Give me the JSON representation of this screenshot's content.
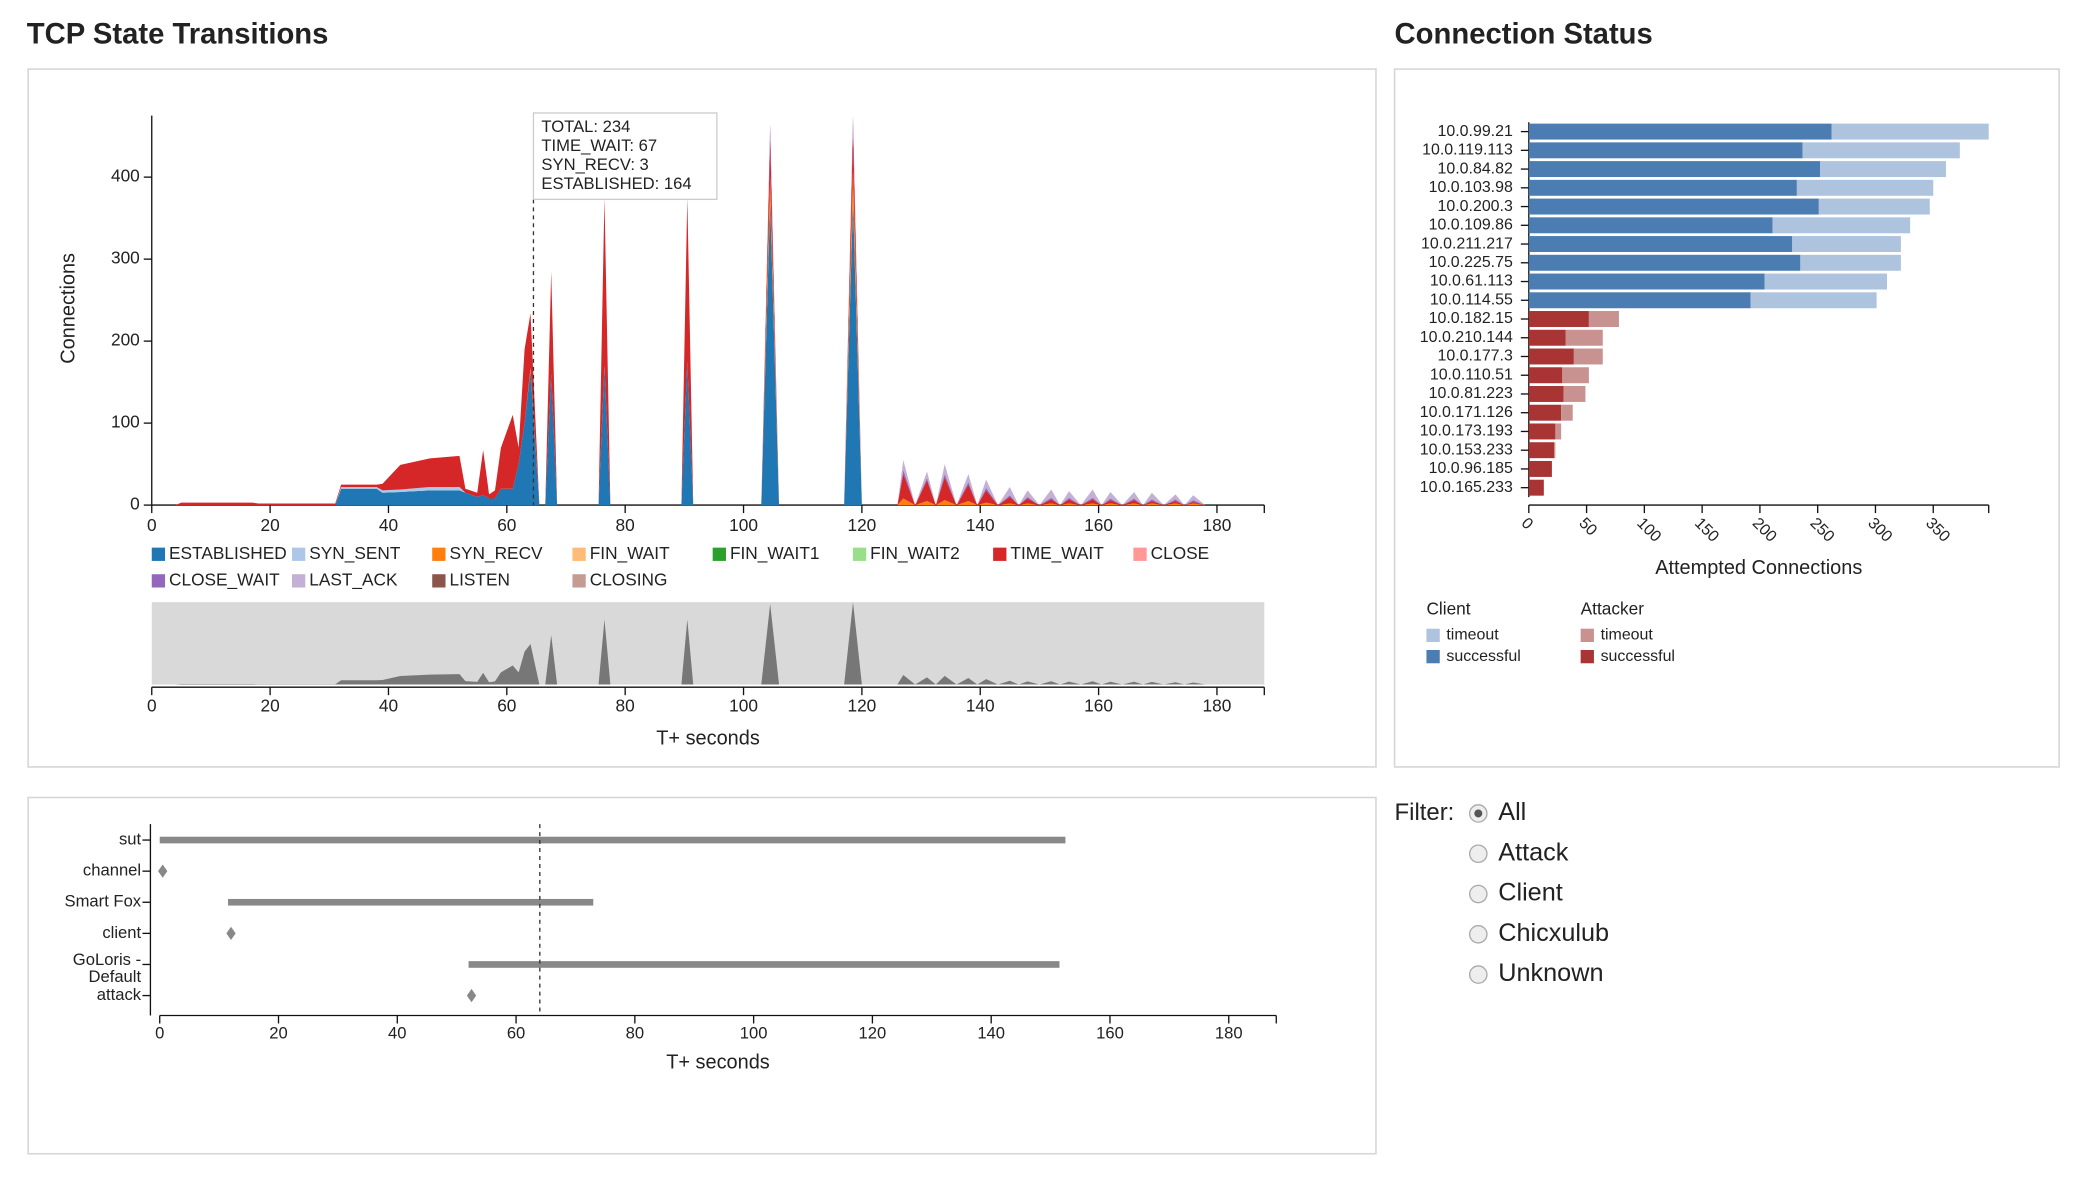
{
  "chart_data": [
    {
      "type": "area",
      "title": "TCP State Transitions",
      "ylabel": "Connections",
      "xlabel": "T+ seconds",
      "x": [
        0,
        4,
        5,
        17,
        18,
        31,
        32,
        38,
        39,
        42,
        47,
        52,
        53,
        55,
        56,
        57,
        58,
        59,
        61,
        62,
        63,
        64,
        65.5,
        66.5,
        67.5,
        68.5,
        75.5,
        76.5,
        77.5,
        89.5,
        90.5,
        91.5,
        103,
        104.5,
        106,
        117,
        118.5,
        120,
        126,
        127,
        129,
        131,
        132.5,
        134,
        136,
        138,
        139.5,
        141,
        143,
        145,
        146.5,
        148,
        150,
        152,
        153.5,
        155,
        157,
        159,
        160.5,
        162,
        164,
        166,
        167.5,
        169,
        171,
        173,
        174.5,
        176,
        178
      ],
      "xlim": [
        0,
        188
      ],
      "ylim": [
        0,
        475
      ],
      "xticks": [
        0,
        20,
        40,
        60,
        80,
        100,
        120,
        140,
        160,
        180
      ],
      "yticks": [
        0,
        100,
        200,
        300,
        400
      ],
      "series": [
        {
          "name": "ESTABLISHED",
          "color": "#1f77b4",
          "values": [
            0,
            0,
            0,
            0,
            0,
            0,
            20,
            20,
            15,
            16,
            18,
            18,
            15,
            10,
            12,
            8,
            8,
            20,
            20,
            50,
            100,
            164,
            0,
            0,
            160,
            0,
            0,
            170,
            0,
            0,
            175,
            0,
            0,
            370,
            0,
            0,
            370,
            0,
            0,
            0,
            0,
            0,
            0,
            0,
            0,
            0,
            0,
            0,
            0,
            0,
            0,
            0,
            0,
            0,
            0,
            0,
            0,
            0,
            0,
            0,
            0,
            0,
            0,
            0,
            0,
            0,
            0,
            0,
            0
          ]
        },
        {
          "name": "SYN_SENT",
          "color": "#aec7e8",
          "values": [
            0,
            0,
            0,
            0,
            0,
            0,
            2,
            2,
            3,
            3,
            4,
            4,
            0,
            0,
            0,
            0,
            0,
            0,
            0,
            0,
            0,
            0,
            0,
            0,
            0,
            0,
            0,
            0,
            0,
            0,
            0,
            0,
            0,
            0,
            0,
            0,
            0,
            0,
            0,
            0,
            0,
            0,
            0,
            0,
            0,
            0,
            0,
            0,
            0,
            0,
            0,
            0,
            0,
            0,
            0,
            0,
            0,
            0,
            0,
            0,
            0,
            0,
            0,
            0,
            0,
            0,
            0,
            0,
            0
          ]
        },
        {
          "name": "SYN_RECV",
          "color": "#ff7f0e",
          "values": [
            0,
            0,
            0,
            0,
            0,
            0,
            0,
            0,
            0,
            0,
            0,
            0,
            0,
            0,
            0,
            0,
            0,
            0,
            0,
            0,
            0,
            3,
            0,
            0,
            0,
            0,
            0,
            0,
            0,
            0,
            0,
            0,
            0,
            30,
            0,
            0,
            40,
            0,
            0,
            8,
            0,
            5,
            0,
            6,
            0,
            5,
            0,
            3,
            0,
            2,
            0,
            2,
            0,
            2,
            0,
            2,
            0,
            2,
            0,
            2,
            0,
            2,
            0,
            2,
            0,
            2,
            0,
            2,
            0
          ]
        },
        {
          "name": "FIN_WAIT",
          "color": "#ffbb78",
          "values": [
            0,
            0,
            0,
            0,
            0,
            0,
            0,
            0,
            0,
            0,
            0,
            0,
            0,
            0,
            0,
            0,
            0,
            0,
            0,
            0,
            0,
            0,
            0,
            0,
            0,
            0,
            0,
            0,
            0,
            0,
            0,
            0,
            0,
            0,
            0,
            0,
            0,
            0,
            0,
            0,
            0,
            0,
            0,
            0,
            0,
            0,
            0,
            0,
            0,
            0,
            0,
            0,
            0,
            0,
            0,
            0,
            0,
            0,
            0,
            0,
            0,
            0,
            0,
            0,
            0,
            0,
            0,
            0,
            0
          ]
        },
        {
          "name": "FIN_WAIT1",
          "color": "#2ca02c",
          "values": [
            0,
            0,
            0,
            0,
            0,
            0,
            0,
            0,
            0,
            0,
            0,
            0,
            0,
            0,
            0,
            0,
            0,
            0,
            0,
            0,
            0,
            0,
            0,
            0,
            0,
            0,
            0,
            0,
            0,
            0,
            0,
            0,
            0,
            0,
            0,
            0,
            0,
            0,
            0,
            0,
            0,
            0,
            0,
            0,
            0,
            0,
            0,
            0,
            0,
            0,
            0,
            0,
            0,
            0,
            0,
            0,
            0,
            0,
            0,
            0,
            0,
            0,
            0,
            0,
            0,
            0,
            0,
            0,
            0
          ]
        },
        {
          "name": "FIN_WAIT2",
          "color": "#98df8a",
          "values": [
            0,
            0,
            0,
            0,
            0,
            0,
            0,
            0,
            0,
            0,
            0,
            0,
            0,
            0,
            0,
            0,
            0,
            0,
            0,
            0,
            0,
            0,
            0,
            0,
            0,
            0,
            0,
            0,
            0,
            0,
            0,
            0,
            0,
            0,
            0,
            0,
            0,
            0,
            0,
            0,
            0,
            0,
            0,
            0,
            0,
            0,
            0,
            0,
            0,
            0,
            0,
            0,
            0,
            0,
            0,
            0,
            0,
            0,
            0,
            0,
            0,
            0,
            0,
            0,
            0,
            0,
            0,
            0,
            0
          ]
        },
        {
          "name": "TIME_WAIT",
          "color": "#d62728",
          "values": [
            0,
            0,
            3,
            3,
            2,
            2,
            3,
            3,
            8,
            30,
            35,
            38,
            5,
            5,
            55,
            5,
            10,
            50,
            90,
            20,
            90,
            67,
            0,
            0,
            125,
            0,
            0,
            205,
            0,
            0,
            200,
            0,
            0,
            50,
            0,
            0,
            50,
            0,
            0,
            30,
            0,
            25,
            0,
            28,
            0,
            20,
            0,
            15,
            0,
            8,
            0,
            6,
            0,
            5,
            0,
            5,
            0,
            5,
            0,
            4,
            0,
            4,
            0,
            3,
            0,
            3,
            0,
            2,
            0
          ]
        },
        {
          "name": "CLOSE",
          "color": "#ff9896",
          "values": [
            0,
            0,
            0,
            0,
            0,
            0,
            0,
            0,
            0,
            0,
            0,
            0,
            0,
            0,
            0,
            0,
            0,
            0,
            0,
            0,
            0,
            0,
            0,
            0,
            0,
            0,
            0,
            0,
            0,
            0,
            0,
            0,
            0,
            0,
            0,
            0,
            0,
            0,
            0,
            0,
            0,
            0,
            0,
            0,
            0,
            0,
            0,
            0,
            0,
            0,
            0,
            0,
            0,
            0,
            0,
            0,
            0,
            0,
            0,
            0,
            0,
            0,
            0,
            0,
            0,
            0,
            0,
            0,
            0
          ]
        },
        {
          "name": "CLOSE_WAIT",
          "color": "#9467bd",
          "values": [
            0,
            0,
            0,
            0,
            0,
            0,
            0,
            0,
            0,
            0,
            0,
            0,
            0,
            0,
            0,
            0,
            0,
            0,
            0,
            0,
            0,
            0,
            0,
            0,
            0,
            0,
            0,
            0,
            0,
            0,
            0,
            0,
            0,
            15,
            0,
            0,
            15,
            0,
            0,
            5,
            0,
            3,
            0,
            4,
            0,
            3,
            0,
            3,
            0,
            2,
            0,
            2,
            0,
            2,
            0,
            2,
            0,
            2,
            0,
            2,
            0,
            2,
            0,
            2,
            0,
            2,
            0,
            2,
            0
          ]
        },
        {
          "name": "LAST_ACK",
          "color": "#c5b0d5",
          "values": [
            0,
            0,
            0,
            0,
            0,
            0,
            0,
            0,
            0,
            0,
            0,
            0,
            0,
            0,
            0,
            0,
            0,
            0,
            0,
            0,
            0,
            0,
            0,
            0,
            0,
            0,
            0,
            0,
            0,
            0,
            0,
            0,
            0,
            0,
            0,
            0,
            0,
            0,
            0,
            12,
            0,
            8,
            0,
            12,
            0,
            10,
            0,
            10,
            0,
            10,
            0,
            8,
            0,
            10,
            0,
            8,
            0,
            10,
            0,
            8,
            0,
            8,
            0,
            8,
            0,
            6,
            0,
            6,
            0
          ]
        },
        {
          "name": "LISTEN",
          "color": "#8c564b",
          "values": [
            0,
            0,
            0,
            0,
            0,
            0,
            0,
            0,
            0,
            0,
            0,
            0,
            0,
            0,
            0,
            0,
            0,
            0,
            0,
            0,
            0,
            0,
            0,
            0,
            0,
            0,
            0,
            0,
            0,
            0,
            0,
            0,
            0,
            0,
            0,
            0,
            0,
            0,
            0,
            0,
            0,
            0,
            0,
            0,
            0,
            0,
            0,
            0,
            0,
            0,
            0,
            0,
            0,
            0,
            0,
            0,
            0,
            0,
            0,
            0,
            0,
            0,
            0,
            0,
            0,
            0,
            0,
            0,
            0
          ]
        },
        {
          "name": "CLOSING",
          "color": "#c49c94",
          "values": [
            0,
            0,
            0,
            0,
            0,
            0,
            0,
            0,
            0,
            0,
            0,
            0,
            0,
            0,
            0,
            0,
            0,
            0,
            0,
            0,
            0,
            0,
            0,
            0,
            0,
            0,
            0,
            0,
            0,
            0,
            0,
            0,
            0,
            0,
            0,
            0,
            0,
            0,
            0,
            0,
            0,
            0,
            0,
            0,
            0,
            0,
            0,
            0,
            0,
            0,
            0,
            0,
            0,
            0,
            0,
            0,
            0,
            0,
            0,
            0,
            0,
            0,
            0,
            0,
            0,
            0,
            0,
            0,
            0
          ]
        }
      ],
      "cursor_x": 64.5,
      "tooltip": [
        {
          "text": "TOTAL: 234",
          "color": "#222222"
        },
        {
          "text": "TIME_WAIT: 67",
          "color": "#d62728"
        },
        {
          "text": "SYN_RECV: 3",
          "color": "#ff7f0e"
        },
        {
          "text": "ESTABLISHED: 164",
          "color": "#1f77b4"
        }
      ],
      "context": true
    },
    {
      "type": "timeline",
      "xlabel": "T+ seconds",
      "categories": [
        "sut",
        "channel",
        "Smart Fox",
        "client",
        [
          "GoLoris -",
          "Default"
        ],
        "attack"
      ],
      "starts": [
        0,
        0.5,
        11.5,
        12,
        52,
        52.5
      ],
      "ends": [
        152.5,
        null,
        73,
        null,
        151.5,
        null
      ],
      "color": "#888888",
      "xlim": [
        0,
        188
      ],
      "xticks": [
        0,
        20,
        40,
        60,
        80,
        100,
        120,
        140,
        160,
        180
      ],
      "cursor_x": 64
    },
    {
      "type": "hbar",
      "title": "Connection Status",
      "xlabel": "Attempted Connections",
      "categories": [
        "10.0.99.21",
        "10.0.119.113",
        "10.0.84.82",
        "10.0.103.98",
        "10.0.200.3",
        "10.0.109.86",
        "10.0.211.217",
        "10.0.225.75",
        "10.0.61.113",
        "10.0.114.55",
        "10.0.182.15",
        "10.0.210.144",
        "10.0.177.3",
        "10.0.110.51",
        "10.0.81.223",
        "10.0.171.126",
        "10.0.173.193",
        "10.0.153.233",
        "10.0.96.185",
        "10.0.165.233"
      ],
      "xlim": [
        0,
        398
      ],
      "xticks": [
        0,
        50,
        100,
        150,
        200,
        250,
        300,
        350
      ],
      "groups": [
        {
          "name": "Client",
          "series": [
            {
              "name": "timeout",
              "color": "#aec3de",
              "values": [
                136,
                136,
                109,
                118,
                96,
                119,
                94,
                87,
                106,
                109,
                null,
                null,
                null,
                null,
                null,
                null,
                null,
                null,
                null,
                null
              ]
            },
            {
              "name": "successful",
              "color": "#4b7db3",
              "values": [
                262,
                237,
                252,
                232,
                251,
                211,
                228,
                235,
                204,
                192,
                null,
                null,
                null,
                null,
                null,
                null,
                null,
                null,
                null,
                null
              ]
            }
          ]
        },
        {
          "name": "Attacker",
          "series": [
            {
              "name": "timeout",
              "color": "#c79290",
              "values": [
                null,
                null,
                null,
                null,
                null,
                null,
                null,
                null,
                null,
                null,
                26,
                32,
                25,
                23,
                19,
                10,
                5,
                1,
                0,
                0
              ]
            },
            {
              "name": "successful",
              "color": "#a83434",
              "values": [
                null,
                null,
                null,
                null,
                null,
                null,
                null,
                null,
                null,
                null,
                52,
                32,
                39,
                29,
                30,
                28,
                23,
                22,
                20,
                13
              ]
            }
          ]
        }
      ]
    }
  ],
  "filter": {
    "label": "Filter:",
    "options": [
      "All",
      "Attack",
      "Client",
      "Chicxulub",
      "Unknown"
    ],
    "selected": "All"
  }
}
